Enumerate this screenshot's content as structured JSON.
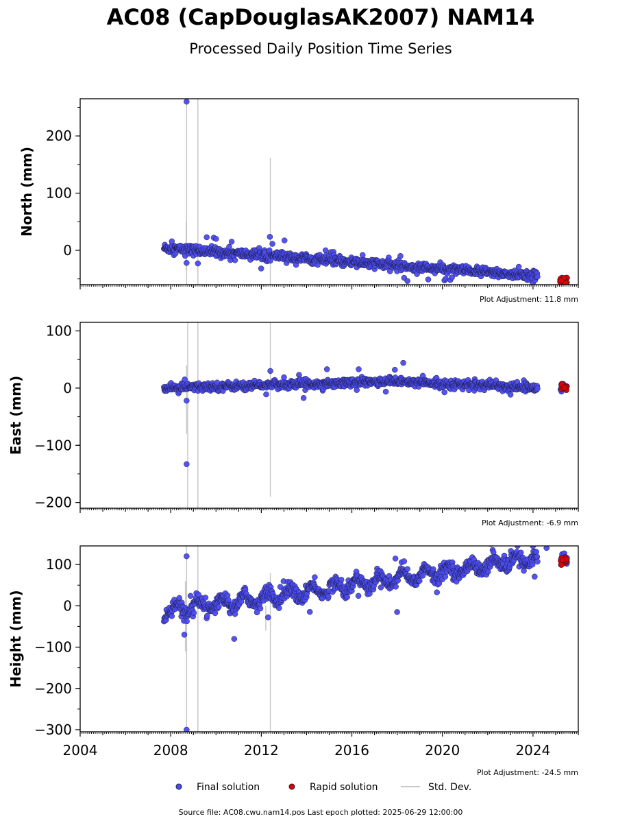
{
  "title": "AC08 (CapDouglasAK2007) NAM14",
  "subtitle": "Processed Daily Position Time Series",
  "source_text": "Source file: AC08.cwu.nam14.pos  Last epoch plotted: 2025-06-29 12:00:00",
  "legend": {
    "final": "Final solution",
    "rapid": "Rapid solution",
    "std": "Std. Dev."
  },
  "colors": {
    "final": "#4b4bef",
    "rapid": "#e00000",
    "std": "#c8c8c8",
    "edge": "#1a1a3a"
  },
  "chart_data": [
    {
      "type": "scatter",
      "ylabel": "North (mm)",
      "adjustment_text": "Plot Adjustment: 11.8 mm",
      "xlim": [
        2004,
        2026
      ],
      "ylim": [
        -60,
        265
      ],
      "yticks": [
        0,
        100,
        200
      ],
      "yticklabels": [
        "0",
        "100",
        "200"
      ],
      "trend": {
        "start": [
          2007.7,
          4
        ],
        "end": [
          2024.2,
          -45
        ],
        "scatter": 7
      },
      "rapid": {
        "x": [
          2025.2,
          2025.5
        ],
        "center": -52,
        "spread": 3
      },
      "outliers": [
        [
          2008.7,
          260
        ],
        [
          2008.7,
          -22
        ],
        [
          2009.2,
          -23
        ],
        [
          2009.9,
          22
        ],
        [
          2010.0,
          20
        ]
      ],
      "std_lines": [
        [
          2008.7,
          -60,
          265
        ],
        [
          2009.2,
          -60,
          265
        ],
        [
          2012.4,
          -60,
          162
        ],
        [
          2008.68,
          -35,
          50
        ]
      ]
    },
    {
      "type": "scatter",
      "ylabel": "East (mm)",
      "adjustment_text": "Plot Adjustment: -6.9 mm",
      "xlim": [
        2004,
        2026
      ],
      "ylim": [
        -210,
        115
      ],
      "yticks": [
        -200,
        -100,
        0,
        100
      ],
      "yticklabels": [
        "−200",
        "−100",
        "0",
        "100"
      ],
      "trend": {
        "start": [
          2007.7,
          0
        ],
        "mid": [
          2017.8,
          12
        ],
        "end": [
          2024.2,
          0
        ],
        "scatter": 6
      },
      "rapid": {
        "x": [
          2025.2,
          2025.5
        ],
        "center": 2,
        "spread": 3
      },
      "outliers": [
        [
          2008.7,
          -133
        ],
        [
          2008.7,
          -22
        ],
        [
          2012.4,
          30
        ],
        [
          2016.3,
          33
        ],
        [
          2014.9,
          33
        ],
        [
          2017.9,
          32
        ]
      ],
      "std_lines": [
        [
          2008.75,
          -210,
          115
        ],
        [
          2009.2,
          -210,
          115
        ],
        [
          2012.4,
          -190,
          115
        ],
        [
          2008.7,
          -80,
          40
        ]
      ]
    },
    {
      "type": "scatter",
      "ylabel": "Height (mm)",
      "adjustment_text": "Plot Adjustment: -24.5 mm",
      "xlim": [
        2004,
        2026
      ],
      "ylim": [
        -305,
        145
      ],
      "yticks": [
        -300,
        -200,
        -100,
        0,
        100
      ],
      "yticklabels": [
        "−300",
        "−200",
        "−100",
        "0",
        "100"
      ],
      "xticks": [
        2004,
        2008,
        2012,
        2016,
        2020,
        2024
      ],
      "xticklabels": [
        "2004",
        "2008",
        "2012",
        "2016",
        "2020",
        "2024"
      ],
      "trend": {
        "start": [
          2007.7,
          -15
        ],
        "end": [
          2024.2,
          115
        ],
        "scatter": 14,
        "seasonal": 14
      },
      "rapid": {
        "x": [
          2025.2,
          2025.5
        ],
        "center": 110,
        "spread": 6
      },
      "outliers": [
        [
          2008.7,
          120
        ],
        [
          2008.7,
          -300
        ],
        [
          2012.3,
          -28
        ],
        [
          2018.0,
          -15
        ],
        [
          2024.6,
          140
        ]
      ],
      "std_lines": [
        [
          2008.7,
          -305,
          145
        ],
        [
          2009.2,
          -305,
          145
        ],
        [
          2012.4,
          -305,
          80
        ],
        [
          2012.2,
          -60,
          0
        ],
        [
          2008.65,
          -110,
          60
        ]
      ]
    }
  ]
}
